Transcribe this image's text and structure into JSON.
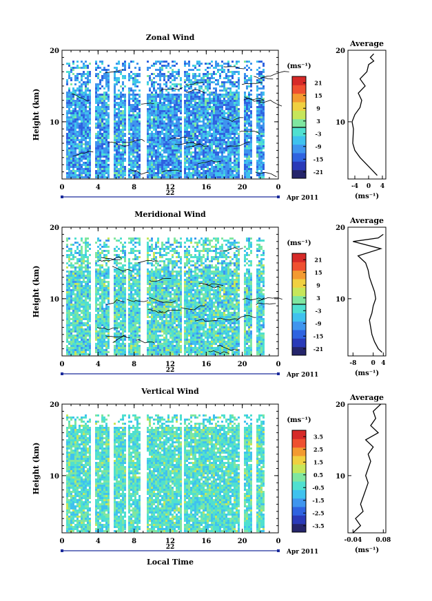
{
  "chart_data": [
    {
      "type": "heatmap",
      "title": "Zonal Wind",
      "ylabel": "Height (km)",
      "yticks": [
        "20",
        "10"
      ],
      "xticks": [
        "0",
        "4",
        "8",
        "12",
        "16",
        "20",
        "0"
      ],
      "date_day": "22",
      "date_month": "Apr 2011",
      "ylim": [
        2,
        20
      ],
      "xlim": [
        0,
        24
      ],
      "colorbar_unit": "(ms⁻¹)",
      "colorbar_ticks": [
        "21",
        "15",
        "9",
        "3",
        "-3",
        "-9",
        "-15",
        "-21"
      ],
      "colorbar_range": [
        -24,
        24
      ],
      "contour_level": 0,
      "profile": {
        "title": "Average",
        "xticks": [
          "-4",
          "0",
          "4"
        ],
        "xrange": [
          -6,
          5
        ],
        "unit": "(ms⁻¹)",
        "height": [
          2.5,
          3,
          4,
          5,
          6,
          7,
          8,
          9,
          10,
          11,
          12,
          13,
          14,
          15,
          16,
          17,
          18,
          18.5,
          19,
          19.5
        ],
        "value": [
          2.5,
          1.5,
          -0.5,
          -2.5,
          -4.0,
          -4.6,
          -4.5,
          -4.4,
          -4.8,
          -4.0,
          -2.5,
          -2.0,
          -3.0,
          -1.0,
          -2.5,
          -0.5,
          0.0,
          1.5,
          0.5,
          1.5
        ]
      }
    },
    {
      "type": "heatmap",
      "title": "Meridional Wind",
      "ylabel": "Height (km)",
      "yticks": [
        "20",
        "10"
      ],
      "xticks": [
        "0",
        "4",
        "8",
        "12",
        "16",
        "20",
        "0"
      ],
      "date_day": "22",
      "date_month": "Apr 2011",
      "ylim": [
        2,
        20
      ],
      "xlim": [
        0,
        24
      ],
      "colorbar_unit": "(ms⁻¹)",
      "colorbar_ticks": [
        "21",
        "15",
        "9",
        "3",
        "-3",
        "-9",
        "-15",
        "-21"
      ],
      "colorbar_range": [
        -24,
        24
      ],
      "contour_level": 0,
      "profile": {
        "title": "Average",
        "xticks": [
          "-8",
          "0",
          "4"
        ],
        "xrange": [
          -10,
          5
        ],
        "unit": "(ms⁻¹)",
        "height": [
          2.5,
          3,
          4,
          5,
          6,
          7,
          8,
          9,
          10,
          11,
          12,
          13,
          14,
          15,
          16,
          17,
          18,
          18.5,
          19
        ],
        "value": [
          3.5,
          2.0,
          0.5,
          -0.5,
          -1.0,
          -1.5,
          -0.5,
          0.0,
          1.0,
          0.5,
          -0.5,
          -1.5,
          -2.0,
          -3.0,
          -6.0,
          3.0,
          -8.0,
          2.0,
          4.0
        ]
      }
    },
    {
      "type": "heatmap",
      "title": "Vertical Wind",
      "ylabel": "Height (km)",
      "yticks": [
        "20",
        "10"
      ],
      "xticks": [
        "0",
        "4",
        "8",
        "12",
        "16",
        "20",
        "0"
      ],
      "date_day": "22",
      "date_month": "Apr 2011",
      "xlabel": "Local Time",
      "ylim": [
        2,
        20
      ],
      "xlim": [
        0,
        24
      ],
      "colorbar_unit": "(ms⁻¹)",
      "colorbar_ticks": [
        "3.5",
        "2.5",
        "1.5",
        "0.5",
        "-0.5",
        "-1.5",
        "-2.5",
        "-3.5"
      ],
      "colorbar_range": [
        -4,
        4
      ],
      "profile": {
        "title": "Average",
        "xticks": [
          "-0.04",
          "0.08"
        ],
        "xrange": [
          -0.06,
          0.09
        ],
        "unit": "(ms⁻¹)",
        "height": [
          2,
          3,
          4,
          5,
          6,
          7,
          8,
          9,
          10,
          11,
          12,
          13,
          14,
          15,
          16,
          17,
          18,
          19,
          20
        ],
        "value": [
          -0.04,
          -0.01,
          -0.03,
          0.0,
          -0.01,
          0.0,
          0.01,
          0.02,
          0.01,
          0.02,
          0.03,
          0.02,
          0.04,
          0.01,
          0.06,
          0.03,
          0.05,
          0.04,
          0.07
        ]
      }
    }
  ],
  "colors": {
    "colorbar": [
      "#25256b",
      "#2a3ab8",
      "#2f63e0",
      "#3f95ee",
      "#3fc2ee",
      "#4fe0d0",
      "#7fe6a0",
      "#c6e65a",
      "#f0d040",
      "#f39a30",
      "#ef5030",
      "#d62a28"
    ],
    "field_base": "#5fd3e6"
  }
}
